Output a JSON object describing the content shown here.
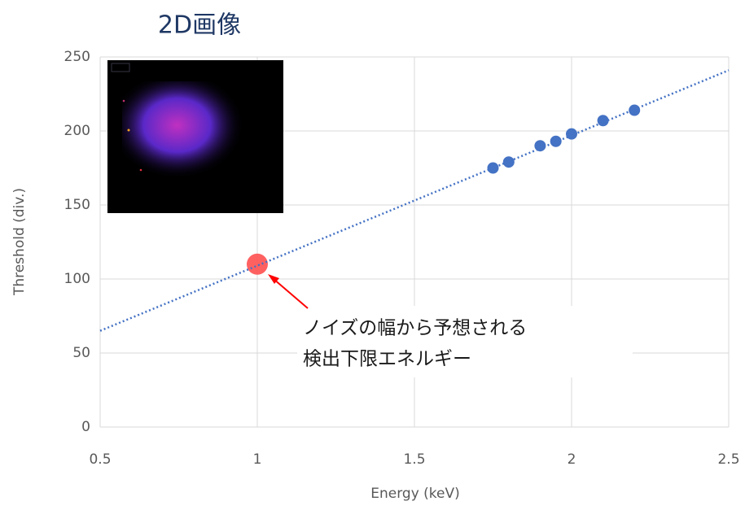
{
  "chart_data": {
    "type": "scatter",
    "image_label": "2D画像",
    "xlabel": "Energy (keV)",
    "ylabel": "Threshold (div.)",
    "xlim": [
      0.5,
      2.5
    ],
    "xticks": [
      0.5,
      1,
      1.5,
      2,
      2.5
    ],
    "ylim": [
      0,
      250
    ],
    "yticks": [
      0,
      50,
      100,
      150,
      200,
      250
    ],
    "grid": true,
    "series": [
      {
        "color": "#4472c4",
        "x": [
          1.75,
          1.8,
          1.9,
          1.95,
          2.0,
          2.1,
          2.2
        ],
        "values": [
          175,
          179,
          190,
          193,
          198,
          207,
          214
        ]
      },
      {
        "color": "#ff5050",
        "x": [
          1
        ],
        "values": [
          110
        ]
      },
      {
        "color": "#4472c4",
        "style": "dotted-line",
        "x": [
          0.5,
          2.5
        ],
        "values": [
          65,
          241
        ]
      }
    ],
    "annotations": [
      "ノイズの幅から予想される",
      "検出下限エネルギー"
    ]
  }
}
